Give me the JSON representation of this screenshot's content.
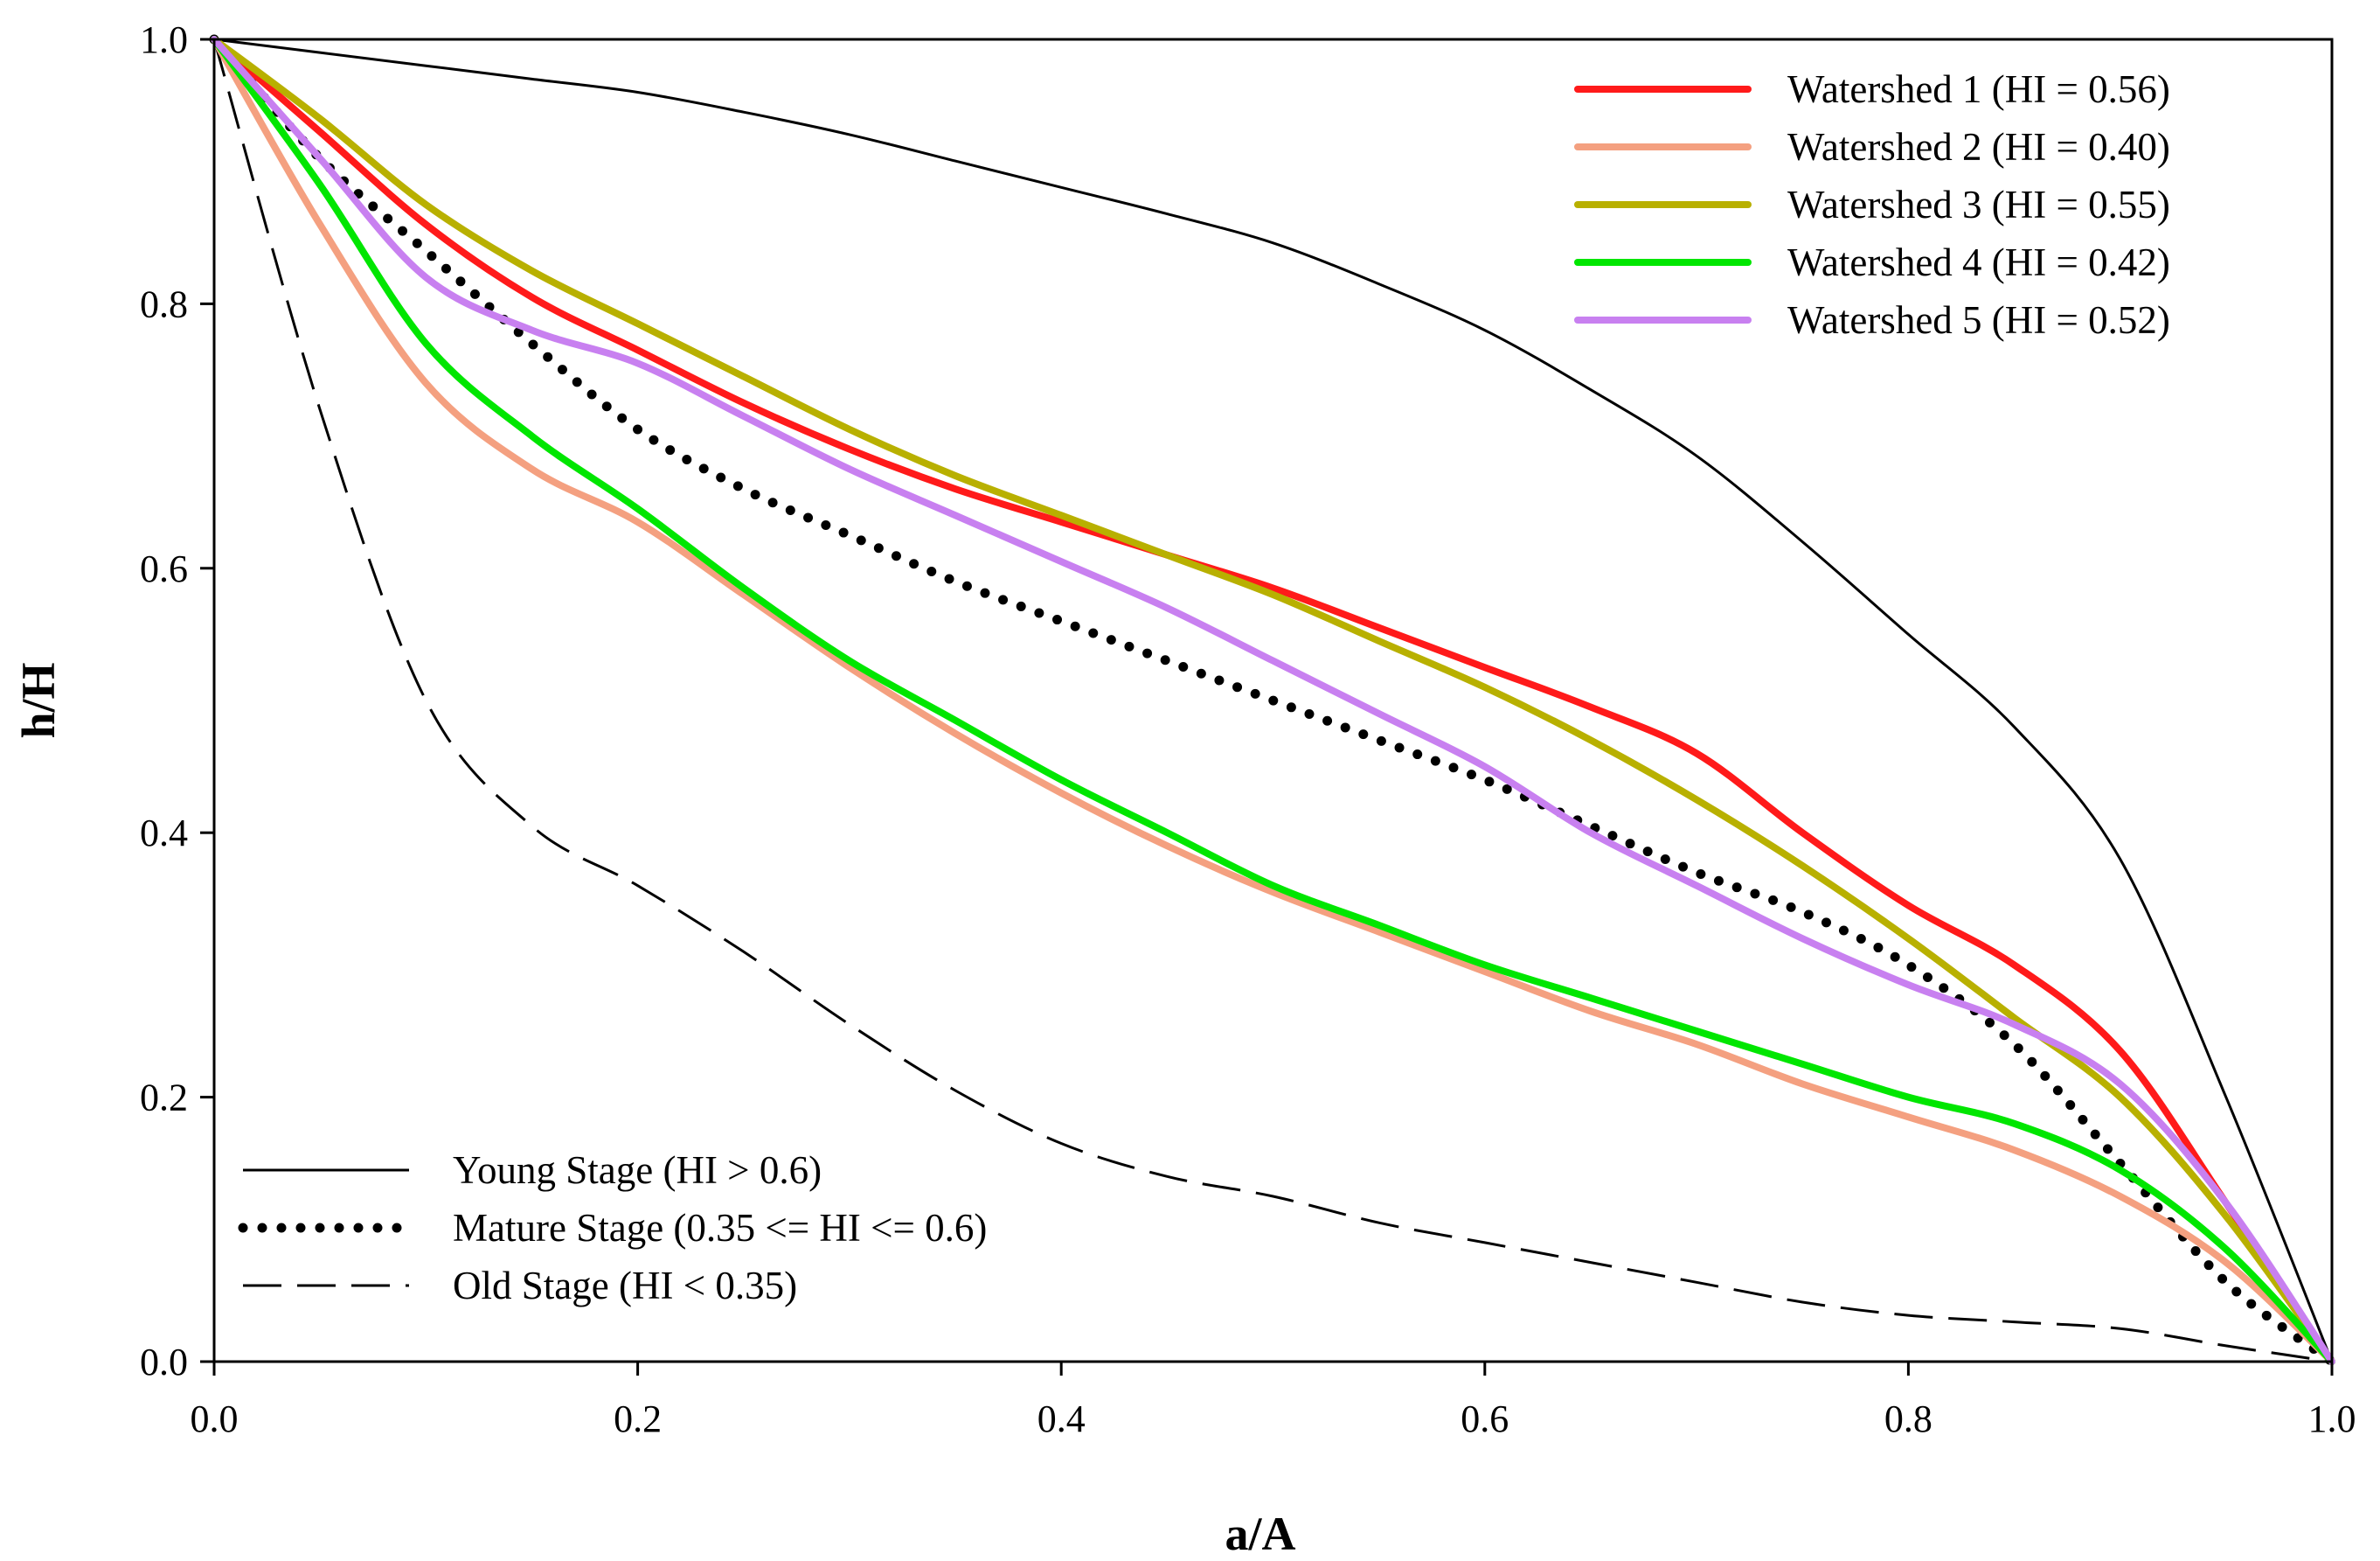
{
  "chart_data": {
    "type": "line",
    "title": "",
    "xlabel": "a/A",
    "ylabel": "h/H",
    "xlim": [
      0,
      1
    ],
    "ylim": [
      0,
      1
    ],
    "xticks": [
      "0.0",
      "0.2",
      "0.4",
      "0.6",
      "0.8",
      "1.0"
    ],
    "yticks": [
      "0.0",
      "0.2",
      "0.4",
      "0.6",
      "0.8",
      "1.0"
    ],
    "grid": false,
    "legend_positions": {
      "watersheds": "top-right",
      "stages": "bottom-left"
    },
    "series": [
      {
        "name": "Watershed 1 (HI = 0.56)",
        "color": "#ff1a1a",
        "style": "solid",
        "group": "watersheds",
        "x": [
          0,
          0.05,
          0.1,
          0.15,
          0.2,
          0.25,
          0.3,
          0.35,
          0.4,
          0.45,
          0.5,
          0.55,
          0.6,
          0.65,
          0.7,
          0.75,
          0.8,
          0.85,
          0.9,
          0.95,
          1.0
        ],
        "y": [
          1.0,
          0.93,
          0.86,
          0.805,
          0.765,
          0.725,
          0.69,
          0.66,
          0.635,
          0.61,
          0.585,
          0.555,
          0.525,
          0.495,
          0.46,
          0.4,
          0.345,
          0.3,
          0.235,
          0.12,
          0.0
        ]
      },
      {
        "name": "Watershed 2 (HI = 0.40)",
        "color": "#f4a080",
        "style": "solid",
        "group": "watersheds",
        "x": [
          0,
          0.05,
          0.1,
          0.15,
          0.2,
          0.25,
          0.3,
          0.35,
          0.4,
          0.45,
          0.5,
          0.55,
          0.6,
          0.65,
          0.7,
          0.75,
          0.8,
          0.85,
          0.9,
          0.95,
          1.0
        ],
        "y": [
          1.0,
          0.86,
          0.74,
          0.675,
          0.635,
          0.58,
          0.525,
          0.475,
          0.43,
          0.39,
          0.355,
          0.325,
          0.295,
          0.265,
          0.24,
          0.21,
          0.185,
          0.16,
          0.125,
          0.075,
          0.0
        ]
      },
      {
        "name": "Watershed 3 (HI = 0.55)",
        "color": "#b8b000",
        "style": "solid",
        "group": "watersheds",
        "x": [
          0,
          0.05,
          0.1,
          0.15,
          0.2,
          0.25,
          0.3,
          0.35,
          0.4,
          0.45,
          0.5,
          0.55,
          0.6,
          0.65,
          0.7,
          0.75,
          0.8,
          0.85,
          0.9,
          0.95,
          1.0
        ],
        "y": [
          1.0,
          0.94,
          0.875,
          0.825,
          0.785,
          0.745,
          0.705,
          0.67,
          0.64,
          0.61,
          0.58,
          0.545,
          0.51,
          0.47,
          0.425,
          0.375,
          0.32,
          0.26,
          0.2,
          0.11,
          0.0
        ]
      },
      {
        "name": "Watershed 4 (HI = 0.42)",
        "color": "#00e600",
        "style": "solid",
        "group": "watersheds",
        "x": [
          0,
          0.05,
          0.1,
          0.15,
          0.2,
          0.25,
          0.3,
          0.35,
          0.4,
          0.45,
          0.5,
          0.55,
          0.6,
          0.65,
          0.7,
          0.75,
          0.8,
          0.85,
          0.9,
          0.95,
          1.0
        ],
        "y": [
          1.0,
          0.89,
          0.77,
          0.7,
          0.645,
          0.585,
          0.53,
          0.485,
          0.44,
          0.4,
          0.36,
          0.33,
          0.3,
          0.275,
          0.25,
          0.225,
          0.2,
          0.18,
          0.145,
          0.085,
          0.0
        ]
      },
      {
        "name": "Watershed 5 (HI = 0.52)",
        "color": "#c880f0",
        "style": "solid",
        "group": "watersheds",
        "x": [
          0,
          0.05,
          0.1,
          0.15,
          0.2,
          0.25,
          0.3,
          0.35,
          0.4,
          0.45,
          0.5,
          0.55,
          0.6,
          0.65,
          0.7,
          0.75,
          0.8,
          0.85,
          0.9,
          0.95,
          1.0
        ],
        "y": [
          1.0,
          0.91,
          0.82,
          0.78,
          0.755,
          0.715,
          0.675,
          0.64,
          0.605,
          0.57,
          0.53,
          0.49,
          0.45,
          0.4,
          0.36,
          0.32,
          0.285,
          0.255,
          0.21,
          0.12,
          0.0
        ]
      },
      {
        "name": "Young  Stage (HI > 0.6)",
        "color": "#000000",
        "style": "solid-thin",
        "group": "stages",
        "x": [
          0,
          0.05,
          0.1,
          0.15,
          0.2,
          0.25,
          0.3,
          0.35,
          0.4,
          0.45,
          0.5,
          0.55,
          0.6,
          0.65,
          0.7,
          0.75,
          0.8,
          0.85,
          0.9,
          0.95,
          1.0
        ],
        "y": [
          1.0,
          0.99,
          0.98,
          0.97,
          0.96,
          0.945,
          0.928,
          0.908,
          0.888,
          0.868,
          0.846,
          0.815,
          0.78,
          0.735,
          0.685,
          0.62,
          0.55,
          0.48,
          0.38,
          0.2,
          0.0
        ]
      },
      {
        "name": "Mature Stage (0.35 <= HI <= 0.6)",
        "color": "#000000",
        "style": "dotted",
        "group": "stages",
        "x": [
          0,
          0.05,
          0.1,
          0.15,
          0.2,
          0.25,
          0.3,
          0.35,
          0.4,
          0.45,
          0.5,
          0.55,
          0.6,
          0.65,
          0.7,
          0.75,
          0.8,
          0.85,
          0.9,
          0.95,
          1.0
        ],
        "y": [
          1.0,
          0.91,
          0.84,
          0.77,
          0.705,
          0.66,
          0.625,
          0.59,
          0.56,
          0.53,
          0.5,
          0.47,
          0.44,
          0.405,
          0.37,
          0.34,
          0.3,
          0.24,
          0.15,
          0.06,
          0.0
        ]
      },
      {
        "name": "Old Stage (HI < 0.35)",
        "color": "#000000",
        "style": "dashed",
        "group": "stages",
        "x": [
          0,
          0.05,
          0.1,
          0.15,
          0.2,
          0.25,
          0.3,
          0.35,
          0.4,
          0.45,
          0.5,
          0.55,
          0.6,
          0.65,
          0.7,
          0.75,
          0.8,
          0.85,
          0.9,
          0.95,
          1.0
        ],
        "y": [
          1.0,
          0.72,
          0.5,
          0.405,
          0.36,
          0.31,
          0.255,
          0.205,
          0.165,
          0.14,
          0.125,
          0.105,
          0.09,
          0.075,
          0.06,
          0.045,
          0.035,
          0.03,
          0.025,
          0.012,
          0.0
        ]
      }
    ]
  }
}
